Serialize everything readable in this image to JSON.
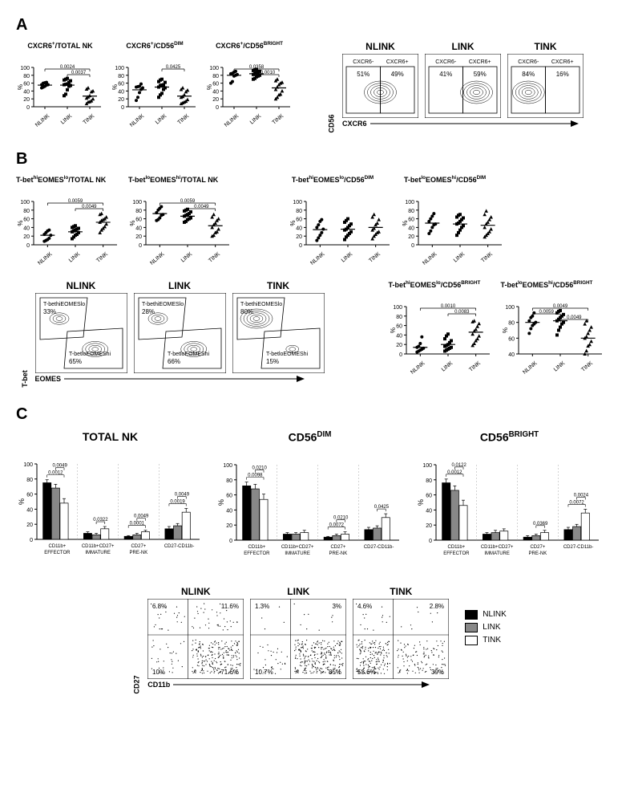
{
  "panelA": {
    "label": "A",
    "scatter": [
      {
        "title_html": "CXCR6<sup>+</sup>/TOTAL NK",
        "groups": [
          "NLINK",
          "LINK",
          "TINK"
        ],
        "ylim": [
          0,
          100
        ],
        "yticks": [
          0,
          20,
          40,
          60,
          80,
          100
        ],
        "points": {
          "NLINK": [
            48,
            50,
            52,
            55,
            56,
            56,
            60,
            61,
            62
          ],
          "LINK": [
            28,
            32,
            43,
            52,
            54,
            56,
            57,
            58,
            62,
            66,
            68,
            70,
            72
          ],
          "TINK": [
            8,
            12,
            13,
            15,
            20,
            22,
            25,
            28,
            38,
            40,
            45,
            48
          ]
        },
        "means": [
          55,
          55,
          27
        ],
        "sig": [
          [
            "NLINK",
            "TINK",
            "0.0024"
          ],
          [
            "LINK",
            "TINK",
            "0.0037"
          ]
        ]
      },
      {
        "title_html": "CXCR6<sup>+</sup>/CD56<sup>DIM</sup>",
        "groups": [
          "NLINK",
          "LINK",
          "TINK"
        ],
        "ylim": [
          0,
          100
        ],
        "yticks": [
          0,
          20,
          40,
          60,
          80,
          100
        ],
        "points": {
          "NLINK": [
            16,
            24,
            36,
            44,
            48,
            50,
            51,
            52,
            58
          ],
          "LINK": [
            24,
            30,
            34,
            44,
            48,
            50,
            54,
            55,
            56,
            62,
            64,
            68,
            70
          ],
          "TINK": [
            8,
            10,
            12,
            14,
            18,
            24,
            26,
            30,
            38,
            42,
            44,
            48
          ]
        },
        "means": [
          43,
          50,
          27
        ],
        "sig": [
          [
            "LINK",
            "TINK",
            "0.0425"
          ]
        ]
      },
      {
        "title_html": "CXCR6<sup>+</sup>/CD56<sup>BRIGHT</sup>",
        "groups": [
          "NLINK",
          "LINK",
          "TINK"
        ],
        "ylim": [
          0,
          100
        ],
        "yticks": [
          0,
          20,
          40,
          60,
          80,
          100
        ],
        "points": {
          "NLINK": [
            60,
            64,
            78,
            80,
            82,
            84,
            85,
            88,
            90
          ],
          "LINK": [
            70,
            72,
            76,
            78,
            80,
            82,
            84,
            86,
            88,
            90,
            92,
            94,
            95
          ],
          "TINK": [
            20,
            24,
            30,
            32,
            40,
            44,
            50,
            56,
            60,
            62,
            66,
            70
          ]
        },
        "means": [
          80,
          84,
          48
        ],
        "sig": [
          [
            "NLINK",
            "TINK",
            "0.0358"
          ],
          [
            "LINK",
            "TINK",
            "0.0010"
          ]
        ]
      }
    ],
    "flow": {
      "y_axis_label": "CD56",
      "x_axis_label": "CXCR6",
      "columns": [
        {
          "header": "NLINK",
          "gates": [
            {
              "label": "CXCR6-",
              "pct": "51%"
            },
            {
              "label": "CXCR6+",
              "pct": "49%"
            }
          ]
        },
        {
          "header": "LINK",
          "gates": [
            {
              "label": "CXCR6-",
              "pct": "41%"
            },
            {
              "label": "CXCR6+",
              "pct": "59%"
            }
          ]
        },
        {
          "header": "TINK",
          "gates": [
            {
              "label": "CXCR6-",
              "pct": "84%"
            },
            {
              "label": "CXCR6+",
              "pct": "16%"
            }
          ]
        }
      ]
    }
  },
  "panelB": {
    "label": "B",
    "scatter_row1": [
      {
        "title_html": "T-bet<sup>hi</sup>EOMES<sup>lo</sup>/TOTAL NK",
        "groups": [
          "NLINK",
          "LINK",
          "TINK"
        ],
        "ylim": [
          0,
          100
        ],
        "yticks": [
          0,
          20,
          40,
          60,
          80,
          100
        ],
        "points": {
          "NLINK": [
            8,
            10,
            12,
            15,
            22,
            24,
            28,
            32,
            34
          ],
          "LINK": [
            14,
            18,
            22,
            24,
            28,
            30,
            32,
            34,
            36,
            38,
            40,
            42,
            44
          ],
          "TINK": [
            28,
            34,
            38,
            42,
            48,
            52,
            56,
            58,
            60,
            64,
            70,
            72
          ]
        },
        "means": [
          22,
          30,
          52
        ],
        "sig": [
          [
            "NLINK",
            "TINK",
            "0.0059"
          ],
          [
            "LINK",
            "TINK",
            "0.0049"
          ]
        ]
      },
      {
        "title_html": "T-bet<sup>lo</sup>EOMES<sup>hi</sup>/TOTAL NK",
        "groups": [
          "NLINK",
          "LINK",
          "TINK"
        ],
        "ylim": [
          0,
          100
        ],
        "yticks": [
          0,
          20,
          40,
          60,
          80,
          100
        ],
        "points": {
          "NLINK": [
            56,
            58,
            62,
            68,
            70,
            74,
            80,
            84,
            88
          ],
          "LINK": [
            52,
            54,
            58,
            60,
            62,
            66,
            68,
            70,
            72,
            76,
            78,
            80,
            82
          ],
          "TINK": [
            20,
            22,
            28,
            30,
            36,
            40,
            46,
            50,
            56,
            60,
            64,
            70
          ]
        },
        "means": [
          72,
          66,
          44
        ],
        "sig": [
          [
            "NLINK",
            "TINK",
            "0.0059"
          ],
          [
            "LINK",
            "TINK",
            "0.0049"
          ]
        ]
      },
      {
        "title_html": "T-bet<sup>hi</sup>EOMES<sup>lo</sup>/CD56<sup>DIM</sup>",
        "groups": [
          "NLINK",
          "LINK",
          "TINK"
        ],
        "ylim": [
          0,
          100
        ],
        "yticks": [
          0,
          20,
          40,
          60,
          80,
          100
        ],
        "points": {
          "NLINK": [
            10,
            16,
            22,
            28,
            36,
            40,
            46,
            54,
            58
          ],
          "LINK": [
            12,
            18,
            22,
            26,
            30,
            34,
            36,
            40,
            44,
            48,
            52,
            56,
            60
          ],
          "TINK": [
            14,
            20,
            24,
            28,
            30,
            34,
            38,
            46,
            50,
            58,
            64,
            70
          ]
        },
        "means": [
          35,
          36,
          40
        ],
        "sig": []
      },
      {
        "title_html": "T-bet<sup>lo</sup>EOMES<sup>hi</sup>/CD56<sup>DIM</sup>",
        "groups": [
          "NLINK",
          "LINK",
          "TINK"
        ],
        "ylim": [
          0,
          100
        ],
        "yticks": [
          0,
          20,
          40,
          60,
          80,
          100
        ],
        "points": {
          "NLINK": [
            26,
            32,
            40,
            46,
            48,
            54,
            60,
            66,
            72
          ],
          "LINK": [
            22,
            28,
            34,
            40,
            44,
            48,
            50,
            54,
            58,
            62,
            64,
            68,
            70
          ],
          "TINK": [
            18,
            22,
            26,
            30,
            36,
            40,
            48,
            52,
            58,
            64,
            70,
            78
          ]
        },
        "means": [
          50,
          48,
          45
        ],
        "sig": []
      }
    ],
    "flow": {
      "y_axis_label": "T-bet",
      "x_axis_label": "EOMES",
      "columns": [
        {
          "header": "NLINK",
          "gates": [
            {
              "label_html": "T-bet<sup>hi</sup>EOMES<sup>lo</sup>",
              "pct": "33%"
            },
            {
              "label_html": "T-bet<sup>lo</sup>EOMES<sup>hi</sup>",
              "pct": "65%"
            }
          ]
        },
        {
          "header": "LINK",
          "gates": [
            {
              "label_html": "T-bet<sup>hi</sup>EOMES<sup>lo</sup>",
              "pct": "28%"
            },
            {
              "label_html": "T-bet<sup>lo</sup>EOMES<sup>hi</sup>",
              "pct": "66%"
            }
          ]
        },
        {
          "header": "TINK",
          "gates": [
            {
              "label_html": "T-bet<sup>hi</sup>EOMES<sup>lo</sup>",
              "pct": "80%"
            },
            {
              "label_html": "T-bet<sup>lo</sup>EOMES<sup>hi</sup>",
              "pct": "15%"
            }
          ]
        }
      ]
    },
    "scatter_row2": [
      {
        "title_html": "T-bet<sup>hi</sup>EOMES<sup>lo</sup>/CD56<sup>BRIGHT</sup>",
        "groups": [
          "NLINK",
          "LINK",
          "TINK"
        ],
        "ylim": [
          0,
          100
        ],
        "yticks": [
          0,
          20,
          40,
          60,
          80,
          100
        ],
        "points": {
          "NLINK": [
            4,
            6,
            8,
            10,
            12,
            14,
            16,
            22,
            36
          ],
          "LINK": [
            6,
            8,
            10,
            12,
            14,
            16,
            18,
            20,
            24,
            28,
            32,
            38,
            42
          ],
          "TINK": [
            18,
            22,
            28,
            32,
            38,
            42,
            48,
            52,
            58,
            64,
            68,
            70
          ]
        },
        "means": [
          14,
          20,
          46
        ],
        "sig": [
          [
            "NLINK",
            "TINK",
            "0.0010"
          ],
          [
            "LINK",
            "TINK",
            "0.0083"
          ]
        ]
      },
      {
        "title_html": "T-bet<sup>lo</sup>EOMES<sup>hi</sup>/CD56<sup>BRIGHT</sup>",
        "groups": [
          "NLINK",
          "LINK",
          "TINK"
        ],
        "ylim": [
          0,
          100
        ],
        "yticks": [
          40,
          60,
          80,
          100
        ],
        "points": {
          "NLINK": [
            66,
            72,
            76,
            78,
            80,
            82,
            86,
            88,
            92
          ],
          "LINK": [
            64,
            70,
            74,
            78,
            80,
            82,
            84,
            86,
            88,
            90,
            92,
            94,
            95
          ],
          "TINK": [
            40,
            44,
            50,
            52,
            56,
            60,
            62,
            66,
            70,
            74,
            78,
            82
          ]
        },
        "means": [
          80,
          82,
          60
        ],
        "sig": [
          [
            "NLINK",
            "TINK",
            "0.0049"
          ],
          [
            "NLINK",
            "LINK",
            "0.0059"
          ],
          [
            "LINK",
            "TINK",
            "0.0049"
          ]
        ]
      }
    ]
  },
  "panelC": {
    "label": "C",
    "bar_charts": [
      {
        "title_html": "TOTAL NK",
        "categories": [
          "CD11b+\nEFFECTOR",
          "CD11b+CD27+\nIMMATURE",
          "CD27+\nPRE-NK",
          "CD27-CD11b-"
        ],
        "ylim": [
          0,
          100
        ],
        "yticks": [
          0,
          20,
          40,
          60,
          80,
          100
        ],
        "bars": {
          "NLINK": [
            75,
            8,
            4,
            14
          ],
          "LINK": [
            68,
            6,
            6,
            18
          ],
          "TINK": [
            48,
            14,
            10,
            36
          ]
        },
        "errors": {
          "NLINK": [
            4,
            2,
            1,
            3
          ],
          "LINK": [
            5,
            2,
            2,
            3
          ],
          "TINK": [
            6,
            3,
            2,
            5
          ]
        },
        "sig": [
          [
            "CD11b+\nEFFECTOR",
            "NLINK",
            "TINK",
            "0.0012"
          ],
          [
            "CD11b+\nEFFECTOR",
            "LINK",
            "TINK",
            "0.0049"
          ],
          [
            "CD11b+CD27+\nIMMATURE",
            "LINK",
            "TINK",
            "0.0322"
          ],
          [
            "CD27+\nPRE-NK",
            "NLINK",
            "TINK",
            "0.0001"
          ],
          [
            "CD27+\nPRE-NK",
            "LINK",
            "TINK",
            "0.0049"
          ],
          [
            "CD27-CD11b-",
            "NLINK",
            "TINK",
            "0.0019"
          ],
          [
            "CD27-CD11b-",
            "LINK",
            "TINK",
            "0.0049"
          ]
        ]
      },
      {
        "title_html": "CD56<sup>DIM</sup>",
        "categories": [
          "CD11b+\nEFFECTOR",
          "CD11b+CD27+\nIMMATURE",
          "CD27+\nPRE-NK",
          "CD27-CD11b-"
        ],
        "ylim": [
          0,
          100
        ],
        "yticks": [
          0,
          20,
          40,
          60,
          80,
          100
        ],
        "bars": {
          "NLINK": [
            72,
            8,
            4,
            14
          ],
          "LINK": [
            68,
            8,
            6,
            16
          ],
          "TINK": [
            54,
            10,
            8,
            30
          ]
        },
        "errors": {
          "NLINK": [
            5,
            2,
            1,
            3
          ],
          "LINK": [
            6,
            2,
            2,
            3
          ],
          "TINK": [
            7,
            3,
            3,
            5
          ]
        },
        "sig": [
          [
            "CD11b+\nEFFECTOR",
            "NLINK",
            "TINK",
            "0.0098"
          ],
          [
            "CD11b+\nEFFECTOR",
            "LINK",
            "TINK",
            "0.0210"
          ],
          [
            "CD27+\nPRE-NK",
            "NLINK",
            "TINK",
            "0.0072"
          ],
          [
            "CD27+\nPRE-NK",
            "LINK",
            "TINK",
            "0.0210"
          ],
          [
            "CD27-CD11b-",
            "LINK",
            "TINK",
            "0.0425"
          ]
        ]
      },
      {
        "title_html": "CD56<sup>BRIGHT</sup>",
        "categories": [
          "CD11b+\nEFFECTOR",
          "CD11b+CD27+\nIMMATURE",
          "CD27+\nPRE-NK",
          "CD27-CD11b-"
        ],
        "ylim": [
          0,
          100
        ],
        "yticks": [
          0,
          20,
          40,
          60,
          80,
          100
        ],
        "bars": {
          "NLINK": [
            76,
            8,
            4,
            14
          ],
          "LINK": [
            66,
            10,
            6,
            18
          ],
          "TINK": [
            46,
            12,
            10,
            36
          ]
        },
        "errors": {
          "NLINK": [
            5,
            2,
            2,
            3
          ],
          "LINK": [
            6,
            3,
            2,
            3
          ],
          "TINK": [
            7,
            3,
            3,
            5
          ]
        },
        "sig": [
          [
            "CD11b+\nEFFECTOR",
            "NLINK",
            "TINK",
            "0.0012"
          ],
          [
            "CD11b+\nEFFECTOR",
            "LINK",
            "TINK",
            "0.0122"
          ],
          [
            "CD27+\nPRE-NK",
            "LINK",
            "TINK",
            "0.0369"
          ],
          [
            "CD27-CD11b-",
            "NLINK",
            "TINK",
            "0.0072"
          ],
          [
            "CD27-CD11b-",
            "LINK",
            "TINK",
            "0.0024"
          ]
        ]
      }
    ],
    "legend": [
      {
        "label": "NLINK",
        "color": "#000000"
      },
      {
        "label": "LINK",
        "color": "#888888"
      },
      {
        "label": "TINK",
        "color": "#ffffff"
      }
    ],
    "flow": {
      "y_axis_label": "CD27",
      "x_axis_label": "CD11b",
      "columns": [
        {
          "header": "NLINK",
          "quad": {
            "tl": "6.8%",
            "tr": "11.6%",
            "bl": "10%",
            "br": "71.6%"
          }
        },
        {
          "header": "LINK",
          "quad": {
            "tl": "1.3%",
            "tr": "3%",
            "bl": "10.7%",
            "br": "85%"
          }
        },
        {
          "header": "TINK",
          "quad": {
            "tl": "4.6%",
            "tr": "2.8%",
            "bl": "53.6%",
            "br": "39%"
          }
        }
      ]
    }
  },
  "style": {
    "marker_shapes": {
      "NLINK": "circle",
      "LINK": "square",
      "TINK": "triangle"
    },
    "marker_color": "#000000",
    "bar_colors": {
      "NLINK": "#000000",
      "LINK": "#888888",
      "TINK": "#ffffff"
    },
    "bar_border": "#000000",
    "axis_color": "#000000",
    "bg": "#ffffff"
  }
}
